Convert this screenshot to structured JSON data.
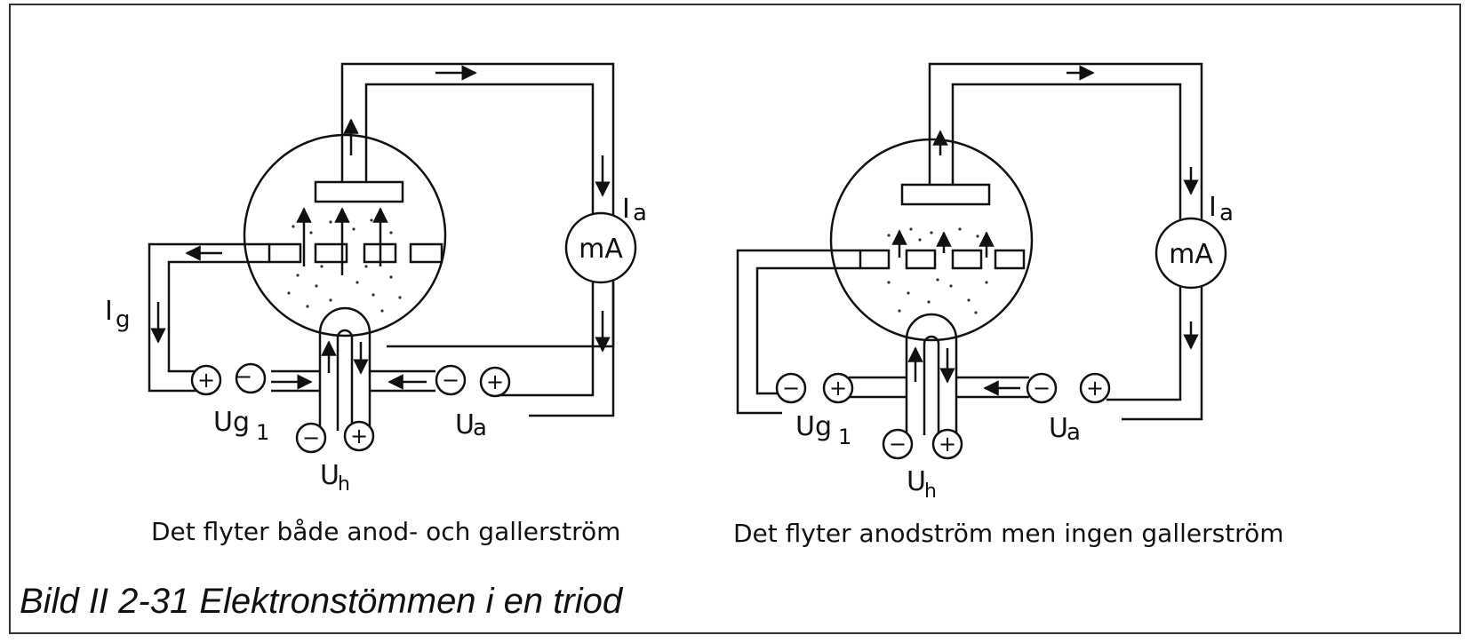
{
  "figure_title": "Bild II 2-31  Elektronstömmen i en triod",
  "left_diagram": {
    "caption": "Det flyter både anod- och gallerström",
    "labels": {
      "anode_current": "I",
      "anode_current_sub": "a",
      "grid_current": "I",
      "grid_current_sub": "g",
      "meter": "mA",
      "grid_voltage": "Ug",
      "grid_voltage_sub": "1",
      "anode_voltage": "U",
      "anode_voltage_sub": "a",
      "heater_voltage": "U",
      "heater_voltage_sub": "h",
      "plus": "+",
      "minus": "−"
    }
  },
  "right_diagram": {
    "caption": "Det flyter anodström men ingen gallerström",
    "labels": {
      "anode_current": "I",
      "anode_current_sub": "a",
      "meter": "mA",
      "grid_voltage": "Ug",
      "grid_voltage_sub": "1",
      "anode_voltage": "U",
      "anode_voltage_sub": "a",
      "heater_voltage": "U",
      "heater_voltage_sub": "h",
      "plus": "+",
      "minus": "−"
    }
  },
  "colors": {
    "ink": "#111111",
    "paper": "#ffffff"
  }
}
